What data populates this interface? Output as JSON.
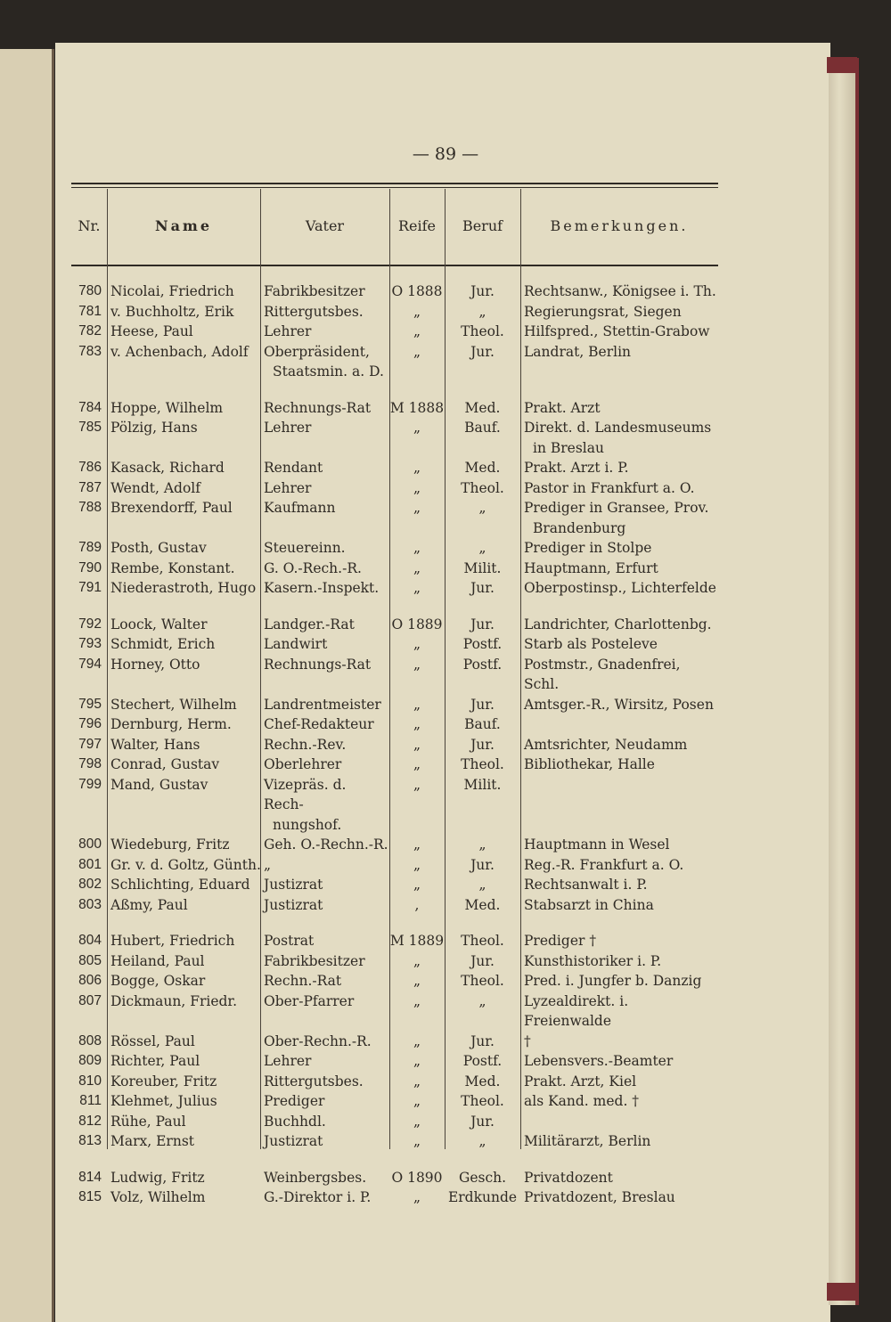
{
  "page_number": "— 89 —",
  "headers": [
    "Nr.",
    "Name",
    "Vater",
    "Reife",
    "Beruf",
    "Bemerkungen."
  ],
  "rows": [
    {
      "nr": "780",
      "name": "Nicolai, Friedrich",
      "vater": "Fabrikbesitzer",
      "reife": "O 1888",
      "beruf": "Jur.",
      "bemerkungen": "Rechtsanw., Königsee i. Th."
    },
    {
      "nr": "781",
      "name": "v. Buchholtz, Erik",
      "vater": "Rittergutsbes.",
      "reife": "„",
      "beruf": "„",
      "bemerkungen": "Regierungsrat, Siegen"
    },
    {
      "nr": "782",
      "name": "Heese, Paul",
      "vater": "Lehrer",
      "reife": "„",
      "beruf": "Theol.",
      "bemerkungen": "Hilfspred., Stettin-Grabow"
    },
    {
      "nr": "783",
      "name": "v. Achenbach, Adolf",
      "vater": "Oberpräsident,",
      "vater2": "Staatsmin. a. D.",
      "reife": "„",
      "beruf": "Jur.",
      "bemerkungen": "Landrat, Berlin"
    },
    {
      "nr": "784",
      "name": "Hoppe, Wilhelm",
      "vater": "Rechnungs-Rat",
      "reife": "M 1888",
      "beruf": "Med.",
      "bemerkungen": "Prakt. Arzt"
    },
    {
      "nr": "785",
      "name": "Pölzig, Hans",
      "vater": "Lehrer",
      "reife": "„",
      "beruf": "Bauf.",
      "bemerkungen": "Direkt. d. Landesmuseums",
      "bemerkungen2": "in Breslau"
    },
    {
      "nr": "786",
      "name": "Kasack, Richard",
      "vater": "Rendant",
      "reife": "„",
      "beruf": "Med.",
      "bemerkungen": "Prakt. Arzt i. P."
    },
    {
      "nr": "787",
      "name": "Wendt, Adolf",
      "vater": "Lehrer",
      "reife": "„",
      "beruf": "Theol.",
      "bemerkungen": "Pastor in Frankfurt a. O."
    },
    {
      "nr": "788",
      "name": "Brexendorff, Paul",
      "vater": "Kaufmann",
      "reife": "„",
      "beruf": "„",
      "bemerkungen": "Prediger in Gransee, Prov.",
      "bemerkungen2": "Brandenburg"
    },
    {
      "nr": "789",
      "name": "Posth, Gustav",
      "vater": "Steuereinn.",
      "reife": "„",
      "beruf": "„",
      "bemerkungen": "Prediger in Stolpe"
    },
    {
      "nr": "790",
      "name": "Rembe, Konstant.",
      "vater": "G. O.-Rech.-R.",
      "reife": "„",
      "beruf": "Milit.",
      "bemerkungen": "Hauptmann, Erfurt"
    },
    {
      "nr": "791",
      "name": "Niederastroth, Hugo",
      "vater": "Kasern.-Inspekt.",
      "reife": "„",
      "beruf": "Jur.",
      "bemerkungen": "Oberpostinsp., Lichterfelde"
    },
    {
      "nr": "792",
      "name": "Loock, Walter",
      "vater": "Landger.-Rat",
      "reife": "O 1889",
      "beruf": "Jur.",
      "bemerkungen": "Landrichter, Charlottenbg."
    },
    {
      "nr": "793",
      "name": "Schmidt, Erich",
      "vater": "Landwirt",
      "reife": "„",
      "beruf": "Postf.",
      "bemerkungen": "Starb als Posteleve"
    },
    {
      "nr": "794",
      "name": "Horney, Otto",
      "vater": "Rechnungs-Rat",
      "reife": "„",
      "beruf": "Postf.",
      "bemerkungen": "Postmstr., Gnadenfrei, Schl."
    },
    {
      "nr": "795",
      "name": "Stechert, Wilhelm",
      "vater": "Landrentmeister",
      "reife": "„",
      "beruf": "Jur.",
      "bemerkungen": "Amtsger.-R., Wirsitz, Posen"
    },
    {
      "nr": "796",
      "name": "Dernburg, Herm.",
      "vater": "Chef-Redakteur",
      "reife": "„",
      "beruf": "Bauf.",
      "bemerkungen": ""
    },
    {
      "nr": "797",
      "name": "Walter, Hans",
      "vater": "Rechn.-Rev.",
      "reife": "„",
      "beruf": "Jur.",
      "bemerkungen": "Amtsrichter, Neudamm"
    },
    {
      "nr": "798",
      "name": "Conrad, Gustav",
      "vater": "Oberlehrer",
      "reife": "„",
      "beruf": "Theol.",
      "bemerkungen": "Bibliothekar, Halle"
    },
    {
      "nr": "799",
      "name": "Mand, Gustav",
      "vater": "Vizepräs. d. Rech-",
      "vater2": "nungshof.",
      "reife": "„",
      "beruf": "Milit.",
      "bemerkungen": ""
    },
    {
      "nr": "800",
      "name": "Wiedeburg, Fritz",
      "vater": "Geh. O.-Rechn.-R.",
      "reife": "„",
      "beruf": "„",
      "bemerkungen": "Hauptmann in Wesel"
    },
    {
      "nr": "801",
      "name": "Gr. v. d. Goltz, Günth.",
      "vater": "„",
      "reife": "„",
      "beruf": "Jur.",
      "bemerkungen": "Reg.-R. Frankfurt a. O."
    },
    {
      "nr": "802",
      "name": "Schlichting, Eduard",
      "vater": "Justizrat",
      "reife": "„",
      "beruf": "„",
      "bemerkungen": "Rechtsanwalt i. P."
    },
    {
      "nr": "803",
      "name": "Aßmy, Paul",
      "vater": "Justizrat",
      "reife": ",",
      "beruf": "Med.",
      "bemerkungen": "Stabsarzt in China"
    },
    {
      "nr": "804",
      "name": "Hubert, Friedrich",
      "vater": "Postrat",
      "reife": "M 1889",
      "beruf": "Theol.",
      "bemerkungen": "Prediger †"
    },
    {
      "nr": "805",
      "name": "Heiland, Paul",
      "vater": "Fabrikbesitzer",
      "reife": "„",
      "beruf": "Jur.",
      "bemerkungen": "Kunsthistoriker i. P."
    },
    {
      "nr": "806",
      "name": "Bogge, Oskar",
      "vater": "Rechn.-Rat",
      "reife": "„",
      "beruf": "Theol.",
      "bemerkungen": "Pred. i. Jungfer b. Danzig"
    },
    {
      "nr": "807",
      "name": "Dickmaun, Friedr.",
      "vater": "Ober-Pfarrer",
      "reife": "„",
      "beruf": "„",
      "bemerkungen": "Lyzealdirekt. i. Freienwalde"
    },
    {
      "nr": "808",
      "name": "Rössel, Paul",
      "vater": "Ober-Rechn.-R.",
      "reife": "„",
      "beruf": "Jur.",
      "bemerkungen": "†"
    },
    {
      "nr": "809",
      "name": "Richter, Paul",
      "vater": "Lehrer",
      "reife": "„",
      "beruf": "Postf.",
      "bemerkungen": "Lebensvers.-Beamter"
    },
    {
      "nr": "810",
      "name": "Koreuber, Fritz",
      "vater": "Rittergutsbes.",
      "reife": "„",
      "beruf": "Med.",
      "bemerkungen": "Prakt. Arzt, Kiel"
    },
    {
      "nr": "811",
      "name": "Klehmet, Julius",
      "vater": "Prediger",
      "reife": "„",
      "beruf": "Theol.",
      "bemerkungen": "als Kand. med. †"
    },
    {
      "nr": "812",
      "name": "Rühe, Paul",
      "vater": "Buchhdl.",
      "reife": "„",
      "beruf": "Jur.",
      "bemerkungen": ""
    },
    {
      "nr": "813",
      "name": "Marx, Ernst",
      "vater": "Justizrat",
      "reife": "„",
      "beruf": "„",
      "bemerkungen": "Militärarzt, Berlin"
    },
    {
      "nr": "814",
      "name": "Ludwig, Fritz",
      "vater": "Weinbergsbes.",
      "reife": "O 1890",
      "beruf": "Gesch.",
      "bemerkungen": "Privatdozent"
    },
    {
      "nr": "815",
      "name": "Volz, Wilhelm",
      "vater": "G.-Direktor i. P.",
      "reife": "„",
      "beruf": "Erdkunde",
      "bemerkungen": "Privatdozent, Breslau"
    }
  ]
}
